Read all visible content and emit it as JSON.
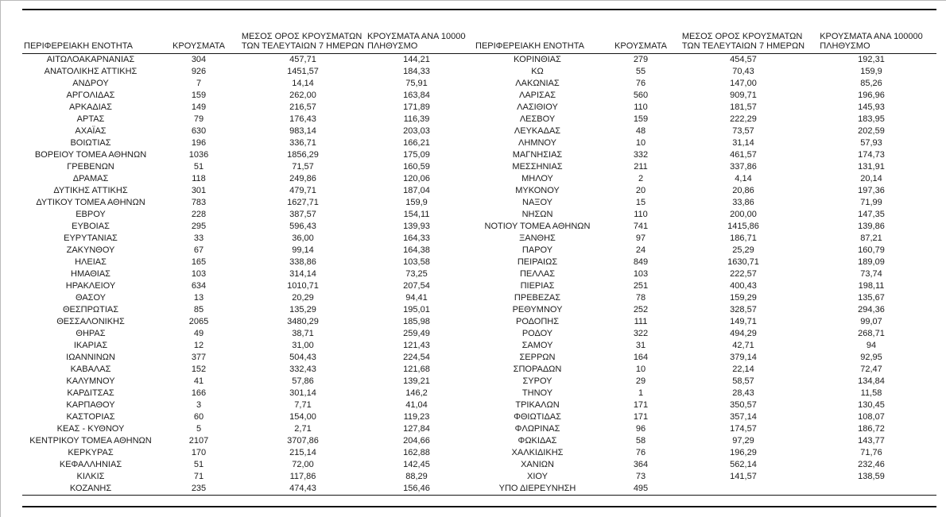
{
  "colors": {
    "rule": "#141414",
    "text": "#1b1b1b",
    "page_border": "#b9b9b9"
  },
  "table": {
    "headers": {
      "region": "ΠΕΡΙΦΕΡΕΙΑΚΗ ΕΝΟΤΗΤΑ",
      "cases": "ΚΡΟΥΣΜΑΤΑ",
      "avg7_line1": "ΜΕΣΟΣ ΟΡΟΣ ΚΡΟΥΣΜΑΤΩΝ",
      "avg7_line2": "ΤΩΝ ΤΕΛΕΥΤΑΙΩΝ 7 ΗΜΕΡΩΝ",
      "per100k_line1": "ΚΡΟΥΣΜΑΤΑ ΑΝΑ 100000",
      "per100k_line2": "ΠΛΗΘΥΣΜΟ"
    },
    "left_rows": [
      [
        "ΑΙΤΩΛΟΑΚΑΡΝΑΝΙΑΣ",
        "304",
        "457,71",
        "144,21"
      ],
      [
        "ΑΝΑΤΟΛΙΚΗΣ ΑΤΤΙΚΗΣ",
        "926",
        "1451,57",
        "184,33"
      ],
      [
        "ΑΝΔΡΟΥ",
        "7",
        "14,14",
        "75,91"
      ],
      [
        "ΑΡΓΟΛΙΔΑΣ",
        "159",
        "262,00",
        "163,84"
      ],
      [
        "ΑΡΚΑΔΙΑΣ",
        "149",
        "216,57",
        "171,89"
      ],
      [
        "ΑΡΤΑΣ",
        "79",
        "176,43",
        "116,39"
      ],
      [
        "ΑΧΑΪΑΣ",
        "630",
        "983,14",
        "203,03"
      ],
      [
        "ΒΟΙΩΤΙΑΣ",
        "196",
        "336,71",
        "166,21"
      ],
      [
        "ΒΟΡΕΙΟΥ ΤΟΜΕΑ ΑΘΗΝΩΝ",
        "1036",
        "1856,29",
        "175,09"
      ],
      [
        "ΓΡΕΒΕΝΩΝ",
        "51",
        "71,57",
        "160,59"
      ],
      [
        "ΔΡΑΜΑΣ",
        "118",
        "249,86",
        "120,06"
      ],
      [
        "ΔΥΤΙΚΗΣ ΑΤΤΙΚΗΣ",
        "301",
        "479,71",
        "187,04"
      ],
      [
        "ΔΥΤΙΚΟΥ ΤΟΜΕΑ ΑΘΗΝΩΝ",
        "783",
        "1627,71",
        "159,9"
      ],
      [
        "ΕΒΡΟΥ",
        "228",
        "387,57",
        "154,11"
      ],
      [
        "ΕΥΒΟΙΑΣ",
        "295",
        "596,43",
        "139,93"
      ],
      [
        "ΕΥΡΥΤΑΝΙΑΣ",
        "33",
        "36,00",
        "164,33"
      ],
      [
        "ΖΑΚΥΝΘΟΥ",
        "67",
        "99,14",
        "164,38"
      ],
      [
        "ΗΛΕΙΑΣ",
        "165",
        "338,86",
        "103,58"
      ],
      [
        "ΗΜΑΘΙΑΣ",
        "103",
        "314,14",
        "73,25"
      ],
      [
        "ΗΡΑΚΛΕΙΟΥ",
        "634",
        "1010,71",
        "207,54"
      ],
      [
        "ΘΑΣΟΥ",
        "13",
        "20,29",
        "94,41"
      ],
      [
        "ΘΕΣΠΡΩΤΙΑΣ",
        "85",
        "135,29",
        "195,01"
      ],
      [
        "ΘΕΣΣΑΛΟΝΙΚΗΣ",
        "2065",
        "3480,29",
        "185,98"
      ],
      [
        "ΘΗΡΑΣ",
        "49",
        "38,71",
        "259,49"
      ],
      [
        "ΙΚΑΡΙΑΣ",
        "12",
        "31,00",
        "121,43"
      ],
      [
        "ΙΩΑΝΝΙΝΩΝ",
        "377",
        "504,43",
        "224,54"
      ],
      [
        "ΚΑΒΑΛΑΣ",
        "152",
        "332,43",
        "121,68"
      ],
      [
        "ΚΑΛΥΜΝΟΥ",
        "41",
        "57,86",
        "139,21"
      ],
      [
        "ΚΑΡΔΙΤΣΑΣ",
        "166",
        "301,14",
        "146,2"
      ],
      [
        "ΚΑΡΠΑΘΟΥ",
        "3",
        "7,71",
        "41,04"
      ],
      [
        "ΚΑΣΤΟΡΙΑΣ",
        "60",
        "154,00",
        "119,23"
      ],
      [
        "ΚΕΑΣ - ΚΥΘΝΟΥ",
        "5",
        "2,71",
        "127,84"
      ],
      [
        "ΚΕΝΤΡΙΚΟΥ ΤΟΜΕΑ ΑΘΗΝΩΝ",
        "2107",
        "3707,86",
        "204,66"
      ],
      [
        "ΚΕΡΚΥΡΑΣ",
        "170",
        "215,14",
        "162,88"
      ],
      [
        "ΚΕΦΑΛΛΗΝΙΑΣ",
        "51",
        "72,00",
        "142,45"
      ],
      [
        "ΚΙΛΚΙΣ",
        "71",
        "117,86",
        "88,29"
      ],
      [
        "ΚΟΖΑΝΗΣ",
        "235",
        "474,43",
        "156,46"
      ]
    ],
    "right_rows": [
      [
        "ΚΟΡΙΝΘΙΑΣ",
        "279",
        "454,57",
        "192,31"
      ],
      [
        "ΚΩ",
        "55",
        "70,43",
        "159,9"
      ],
      [
        "ΛΑΚΩΝΙΑΣ",
        "76",
        "147,00",
        "85,26"
      ],
      [
        "ΛΑΡΙΣΑΣ",
        "560",
        "909,71",
        "196,96"
      ],
      [
        "ΛΑΣΙΘΙΟΥ",
        "110",
        "181,57",
        "145,93"
      ],
      [
        "ΛΕΣΒΟΥ",
        "159",
        "222,29",
        "183,95"
      ],
      [
        "ΛΕΥΚΑΔΑΣ",
        "48",
        "73,57",
        "202,59"
      ],
      [
        "ΛΗΜΝΟΥ",
        "10",
        "31,14",
        "57,93"
      ],
      [
        "ΜΑΓΝΗΣΙΑΣ",
        "332",
        "461,57",
        "174,73"
      ],
      [
        "ΜΕΣΣΗΝΙΑΣ",
        "211",
        "337,86",
        "131,91"
      ],
      [
        "ΜΗΛΟΥ",
        "2",
        "4,14",
        "20,14"
      ],
      [
        "ΜΥΚΟΝΟΥ",
        "20",
        "20,86",
        "197,36"
      ],
      [
        "ΝΑΞΟΥ",
        "15",
        "33,86",
        "71,99"
      ],
      [
        "ΝΗΣΩΝ",
        "110",
        "200,00",
        "147,35"
      ],
      [
        "ΝΟΤΙΟΥ ΤΟΜΕΑ ΑΘΗΝΩΝ",
        "741",
        "1415,86",
        "139,86"
      ],
      [
        "ΞΑΝΘΗΣ",
        "97",
        "186,71",
        "87,21"
      ],
      [
        "ΠΑΡΟΥ",
        "24",
        "25,29",
        "160,79"
      ],
      [
        "ΠΕΙΡΑΙΩΣ",
        "849",
        "1630,71",
        "189,09"
      ],
      [
        "ΠΕΛΛΑΣ",
        "103",
        "222,57",
        "73,74"
      ],
      [
        "ΠΙΕΡΙΑΣ",
        "251",
        "400,43",
        "198,11"
      ],
      [
        "ΠΡΕΒΕΖΑΣ",
        "78",
        "159,29",
        "135,67"
      ],
      [
        "ΡΕΘΥΜΝΟΥ",
        "252",
        "328,57",
        "294,36"
      ],
      [
        "ΡΟΔΟΠΗΣ",
        "111",
        "149,71",
        "99,07"
      ],
      [
        "ΡΟΔΟΥ",
        "322",
        "494,29",
        "268,71"
      ],
      [
        "ΣΑΜΟΥ",
        "31",
        "42,71",
        "94"
      ],
      [
        "ΣΕΡΡΩΝ",
        "164",
        "379,14",
        "92,95"
      ],
      [
        "ΣΠΟΡΑΔΩΝ",
        "10",
        "22,14",
        "72,47"
      ],
      [
        "ΣΥΡΟΥ",
        "29",
        "58,57",
        "134,84"
      ],
      [
        "ΤΗΝΟΥ",
        "1",
        "28,43",
        "11,58"
      ],
      [
        "ΤΡΙΚΑΛΩΝ",
        "171",
        "350,57",
        "130,45"
      ],
      [
        "ΦΘΙΩΤΙΔΑΣ",
        "171",
        "357,14",
        "108,07"
      ],
      [
        "ΦΛΩΡΙΝΑΣ",
        "96",
        "174,57",
        "186,72"
      ],
      [
        "ΦΩΚΙΔΑΣ",
        "58",
        "97,29",
        "143,77"
      ],
      [
        "ΧΑΛΚΙΔΙΚΗΣ",
        "76",
        "196,29",
        "71,76"
      ],
      [
        "ΧΑΝΙΩΝ",
        "364",
        "562,14",
        "232,46"
      ],
      [
        "ΧΙΟΥ",
        "73",
        "141,57",
        "138,59"
      ],
      [
        "ΥΠΟ ΔΙΕΡΕΥΝΗΣΗ",
        "495",
        "",
        ""
      ]
    ]
  }
}
